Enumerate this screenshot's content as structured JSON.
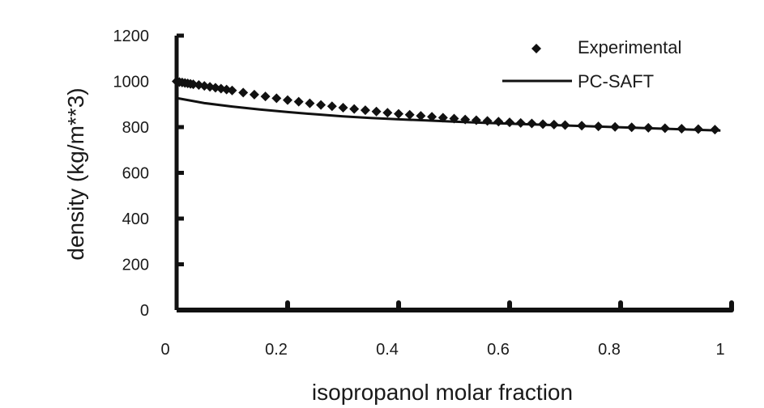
{
  "chart_data": {
    "type": "scatter",
    "xlabel": "isopropanol molar fraction",
    "ylabel": "density (kg/m**3)",
    "xlim": [
      0,
      1
    ],
    "ylim": [
      0,
      1200
    ],
    "xticks": [
      "0",
      "0.2",
      "0.4",
      "0.6",
      "0.8",
      "1"
    ],
    "yticks": [
      "0",
      "200",
      "400",
      "600",
      "800",
      "1000",
      "1200"
    ],
    "legend_position": "top-right",
    "grid": false,
    "series": [
      {
        "name": "Experimental",
        "style": "diamond-markers",
        "x": [
          0.0,
          0.005,
          0.01,
          0.015,
          0.02,
          0.025,
          0.03,
          0.04,
          0.05,
          0.06,
          0.07,
          0.08,
          0.09,
          0.1,
          0.12,
          0.14,
          0.16,
          0.18,
          0.2,
          0.22,
          0.24,
          0.26,
          0.28,
          0.3,
          0.32,
          0.34,
          0.36,
          0.38,
          0.4,
          0.42,
          0.44,
          0.46,
          0.48,
          0.5,
          0.52,
          0.54,
          0.56,
          0.58,
          0.6,
          0.62,
          0.64,
          0.66,
          0.68,
          0.7,
          0.73,
          0.76,
          0.79,
          0.82,
          0.85,
          0.88,
          0.91,
          0.94,
          0.97
        ],
        "y": [
          1000,
          997,
          995,
          993,
          991,
          989,
          987,
          984,
          980,
          976,
          972,
          968,
          964,
          960,
          951,
          942,
          934,
          926,
          918,
          911,
          904,
          897,
          891,
          885,
          879,
          874,
          868,
          863,
          858,
          854,
          849,
          845,
          841,
          837,
          833,
          830,
          827,
          824,
          821,
          818,
          816,
          813,
          811,
          809,
          806,
          803,
          801,
          799,
          797,
          795,
          793,
          791,
          789
        ]
      },
      {
        "name": "PC-SAFT",
        "style": "line",
        "x": [
          0.0,
          0.05,
          0.1,
          0.15,
          0.2,
          0.25,
          0.3,
          0.35,
          0.4,
          0.45,
          0.5,
          0.55,
          0.6,
          0.65,
          0.7,
          0.75,
          0.8,
          0.85,
          0.9,
          0.95,
          0.98
        ],
        "y": [
          927,
          905,
          890,
          877,
          866,
          856,
          847,
          840,
          834,
          829,
          824,
          819,
          815,
          811,
          807,
          803,
          799,
          795,
          791,
          787,
          785
        ]
      }
    ]
  }
}
